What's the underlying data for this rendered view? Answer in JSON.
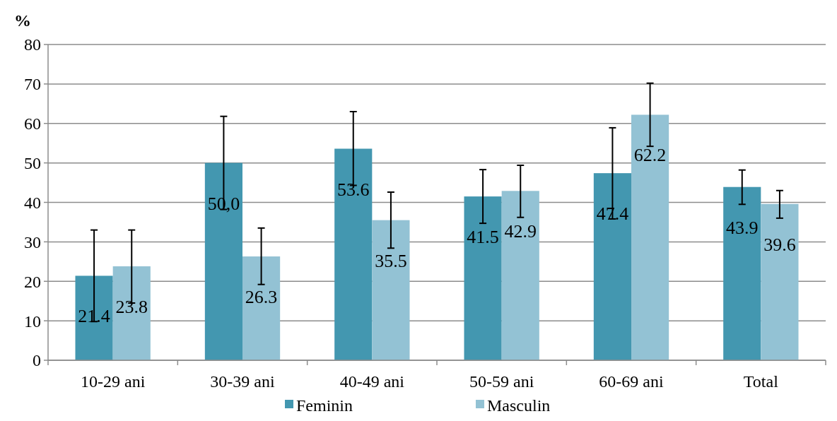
{
  "chart_data": {
    "type": "bar",
    "ylabel": "%",
    "categories": [
      "10-29 ani",
      "30-39 ani",
      "40-49 ani",
      "50-59 ani",
      "60-69 ani",
      "Total"
    ],
    "series": [
      {
        "name": "Feminin",
        "color": "#4397b0",
        "values": [
          21.4,
          50.0,
          53.6,
          41.5,
          47.4,
          43.9
        ],
        "value_labels": [
          "21.4",
          "50,0",
          "53.6",
          "41.5",
          "47.4",
          "43.9"
        ],
        "errors": [
          [
            9.8,
            33.0
          ],
          [
            38.2,
            61.8
          ],
          [
            44.3,
            63.0
          ],
          [
            34.7,
            48.3
          ],
          [
            35.8,
            58.9
          ],
          [
            39.5,
            48.2
          ]
        ]
      },
      {
        "name": "Masculin",
        "color": "#93c2d4",
        "values": [
          23.8,
          26.3,
          35.5,
          42.9,
          62.2,
          39.6
        ],
        "value_labels": [
          "23.8",
          "26.3",
          "35.5",
          "42.9",
          "62.2",
          "39.6"
        ],
        "errors": [
          [
            14.5,
            33.0
          ],
          [
            19.2,
            33.5
          ],
          [
            28.4,
            42.6
          ],
          [
            36.2,
            49.4
          ],
          [
            54.2,
            70.2
          ],
          [
            36.0,
            43.0
          ]
        ]
      }
    ],
    "ylim": [
      0,
      80
    ],
    "yticks": [
      0,
      10,
      20,
      30,
      40,
      50,
      60,
      70,
      80
    ],
    "grid": "y",
    "legend": "bottom"
  }
}
